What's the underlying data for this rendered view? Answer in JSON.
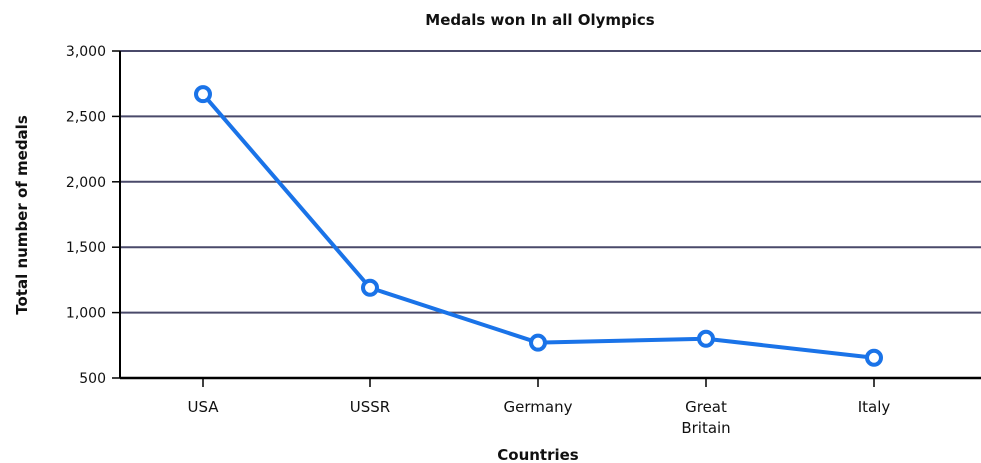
{
  "chart_data": {
    "type": "line",
    "title": "Medals won In all Olympics",
    "xlabel": "Countries",
    "ylabel": "Total number of medals",
    "categories": [
      [
        "USA"
      ],
      [
        "USSR"
      ],
      [
        "Germany"
      ],
      [
        "Great",
        "Britain"
      ],
      [
        "Italy"
      ]
    ],
    "series": [
      {
        "values": [
          2670,
          1190,
          770,
          800,
          655
        ]
      }
    ],
    "y_ticks": [
      "3,000",
      "2,500",
      "2,000",
      "1,500",
      "1,000",
      "500"
    ],
    "y_tick_values": [
      3000,
      2500,
      2000,
      1500,
      1000,
      500
    ],
    "ylim": [
      500,
      3000
    ],
    "grid": true,
    "line_color": "#1a73e8",
    "grid_color": "#4a4a6a"
  }
}
